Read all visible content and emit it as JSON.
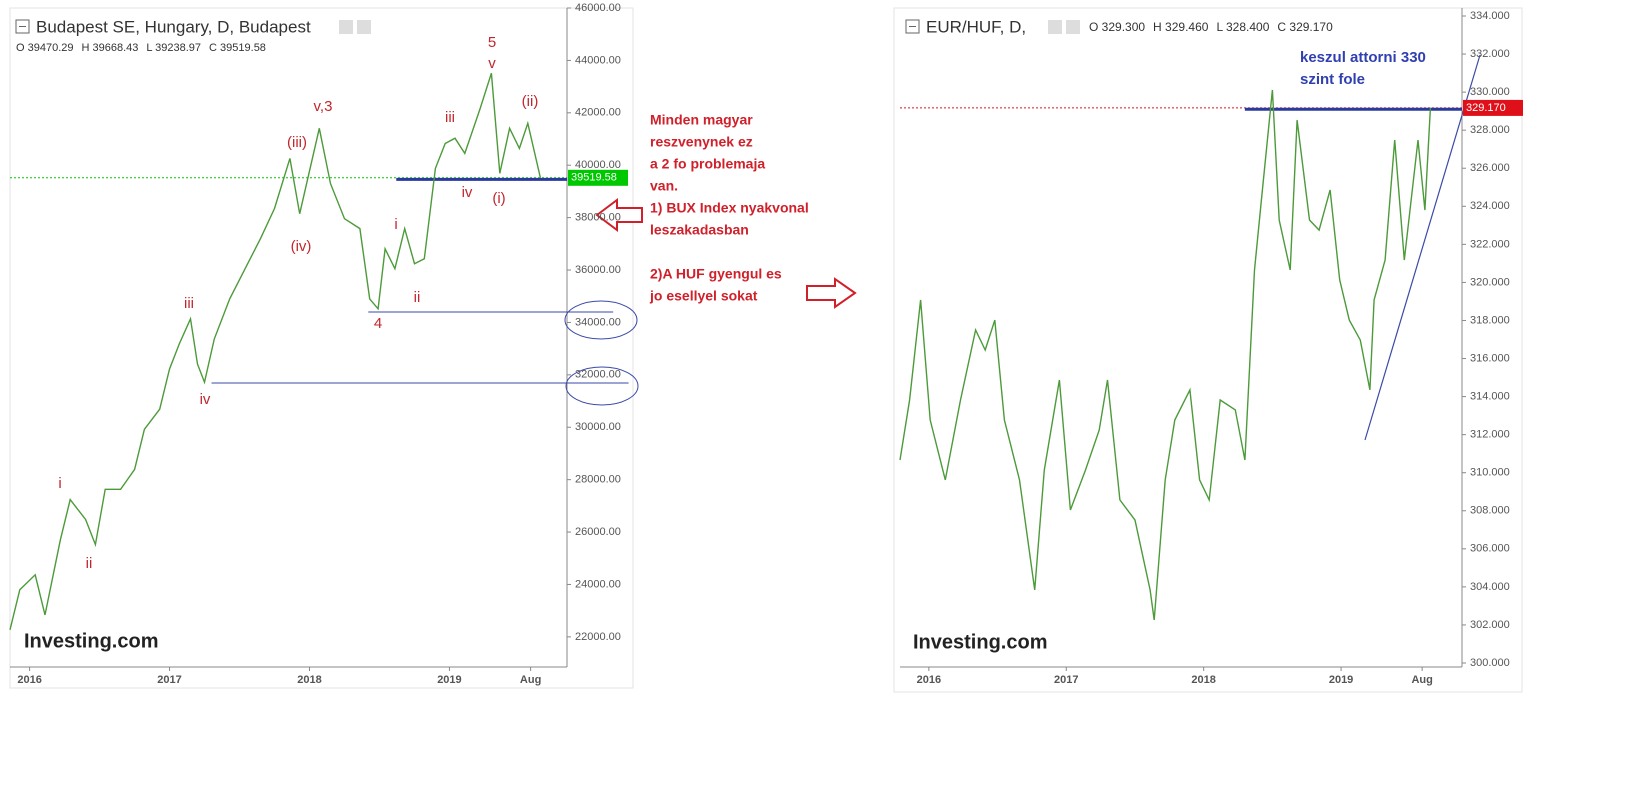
{
  "chart_data": [
    {
      "type": "line",
      "title": "Budapest SE, Hungary, D, Budapest",
      "ohlc": [
        "O 39470.29",
        "H 39668.43",
        "L 39238.97",
        "C 39519.58"
      ],
      "x": [
        2015.86,
        2015.93,
        2016.04,
        2016.11,
        2016.22,
        2016.29,
        2016.4,
        2016.47,
        2016.54,
        2016.65,
        2016.75,
        2016.82,
        2016.93,
        2017.0,
        2017.07,
        2017.15,
        2017.2,
        2017.25,
        2017.32,
        2017.43,
        2017.54,
        2017.65,
        2017.75,
        2017.86,
        2017.93,
        2018.07,
        2018.15,
        2018.25,
        2018.36,
        2018.43,
        2018.49,
        2018.54,
        2018.61,
        2018.68,
        2018.75,
        2018.82,
        2018.9,
        2018.97,
        2019.04,
        2019.11,
        2019.22,
        2019.3,
        2019.36,
        2019.43,
        2019.5,
        2019.56,
        2019.65
      ],
      "values": [
        22270,
        23800,
        24370,
        22840,
        25710,
        27240,
        26480,
        25520,
        27630,
        27630,
        28390,
        29920,
        30690,
        32220,
        33180,
        34140,
        32410,
        31720,
        33370,
        34900,
        36050,
        37200,
        38350,
        40260,
        38150,
        41410,
        39300,
        37960,
        37580,
        34900,
        34520,
        36810,
        36050,
        37580,
        36240,
        36430,
        39880,
        40830,
        41030,
        40450,
        42170,
        43510,
        39690,
        41410,
        40640,
        41600,
        39520
      ],
      "color": "#4c9a3a",
      "xlim": [
        2015.86,
        2019.84
      ],
      "xticks": [
        2016,
        2017,
        2018,
        2019,
        {
          "value": 2019.58,
          "label": "Aug"
        }
      ],
      "ylim": [
        20850,
        46000
      ],
      "yticks": [
        {
          "value": 22000,
          "label": "22000.00"
        },
        {
          "value": 24000,
          "label": "24000.00"
        },
        {
          "value": 26000,
          "label": "26000.00"
        },
        {
          "value": 28000,
          "label": "28000.00"
        },
        {
          "value": 30000,
          "label": "30000.00"
        },
        {
          "value": 32000,
          "label": "32000.00"
        },
        {
          "value": 34000,
          "label": "34000.00"
        },
        {
          "value": 36000,
          "label": "36000.00"
        },
        {
          "value": 38000,
          "label": "38000.00"
        },
        {
          "value": 40000,
          "label": "40000.00"
        },
        {
          "value": 42000,
          "label": "42000.00"
        },
        {
          "value": 44000,
          "label": "44000.00"
        },
        {
          "value": 46000,
          "label": "46000.00"
        }
      ],
      "last": 39519.58,
      "last_color": "#00c800",
      "levels": [
        {
          "value": 39460,
          "x": [
            2018.62,
            2019.84
          ],
          "color": "#2a3a9c",
          "width": 3
        },
        {
          "value": 34400,
          "x": [
            2018.42,
            2020.17
          ],
          "color": "#3a4aa8",
          "width": 1
        },
        {
          "value": 31690,
          "x": [
            2017.3,
            2020.28
          ],
          "color": "#3a4aa8",
          "width": 1
        }
      ],
      "annotations": [
        "5",
        "v",
        "(ii)",
        "v,3",
        "iii",
        "(iii)",
        "iv",
        "(i)",
        "i",
        "(iv)",
        "ii",
        "4",
        "iii",
        "iv",
        "i",
        "ii"
      ],
      "watermark": "Investing.com"
    },
    {
      "type": "line",
      "title": "EUR/HUF, D,",
      "ohlc": [
        "O 329.300",
        "H 329.460",
        "L 328.400",
        "C 329.170"
      ],
      "x": [
        2015.79,
        2015.86,
        2015.94,
        2016.01,
        2016.12,
        2016.23,
        2016.34,
        2016.41,
        2016.48,
        2016.55,
        2016.66,
        2016.77,
        2016.84,
        2016.95,
        2017.03,
        2017.14,
        2017.24,
        2017.3,
        2017.39,
        2017.5,
        2017.61,
        2017.64,
        2017.72,
        2017.79,
        2017.9,
        2017.97,
        2018.04,
        2018.12,
        2018.23,
        2018.3,
        2018.37,
        2018.42,
        2018.5,
        2018.55,
        2018.63,
        2018.68,
        2018.77,
        2018.84,
        2018.92,
        2018.99,
        2019.06,
        2019.14,
        2019.21,
        2019.24,
        2019.32,
        2019.39,
        2019.46,
        2019.56,
        2019.61,
        2019.65
      ],
      "values": [
        310.67,
        313.82,
        319.08,
        312.77,
        309.62,
        313.82,
        317.5,
        316.45,
        318.02,
        312.77,
        309.62,
        303.84,
        310.14,
        314.87,
        308.04,
        310.14,
        312.24,
        314.87,
        308.57,
        307.51,
        303.84,
        302.26,
        309.62,
        312.77,
        314.35,
        309.62,
        308.57,
        313.82,
        313.3,
        310.67,
        320.65,
        324.33,
        330.11,
        323.28,
        320.65,
        328.53,
        323.28,
        322.75,
        324.86,
        320.13,
        318.02,
        316.97,
        314.35,
        319.08,
        321.18,
        327.48,
        321.18,
        327.48,
        323.8,
        329.17
      ],
      "color": "#4c9a3a",
      "xlim": [
        2015.79,
        2019.88
      ],
      "xticks": [
        2016,
        2017,
        2018,
        2019,
        {
          "value": 2019.59,
          "label": "Aug"
        }
      ],
      "ylim": [
        299.79,
        334.42
      ],
      "yticks": [
        {
          "value": 300,
          "label": "300.000"
        },
        {
          "value": 302,
          "label": "302.000"
        },
        {
          "value": 304,
          "label": "304.000"
        },
        {
          "value": 306,
          "label": "306.000"
        },
        {
          "value": 308,
          "label": "308.000"
        },
        {
          "value": 310,
          "label": "310.000"
        },
        {
          "value": 312,
          "label": "312.000"
        },
        {
          "value": 314,
          "label": "314.000"
        },
        {
          "value": 316,
          "label": "316.000"
        },
        {
          "value": 318,
          "label": "318.000"
        },
        {
          "value": 320,
          "label": "320.000"
        },
        {
          "value": 322,
          "label": "322.000"
        },
        {
          "value": 324,
          "label": "324.000"
        },
        {
          "value": 326,
          "label": "326.000"
        },
        {
          "value": 328,
          "label": "328.000"
        },
        {
          "value": 330,
          "label": "330.000"
        },
        {
          "value": 332,
          "label": "332.000"
        },
        {
          "value": 334,
          "label": "334.000"
        }
      ],
      "last": {
        "value": 329.17,
        "label": "329.170"
      },
      "last_color": "#e0101a",
      "levels": [
        {
          "value": 329.1,
          "x": [
            2018.3,
            2019.88
          ],
          "color": "#2a3a9c",
          "width": 3
        }
      ],
      "annotations": [
        "keszul attorni 330",
        "szint fole"
      ],
      "watermark": "Investing.com"
    }
  ],
  "notes": [
    "Minden magyar",
    "reszvenynek ez",
    "a  2 fo problemaja",
    "van.",
    "1) BUX Index nyakvonal",
    "leszakadasban",
    "2)A HUF gyengul es",
    "jo esellyel sokat"
  ]
}
